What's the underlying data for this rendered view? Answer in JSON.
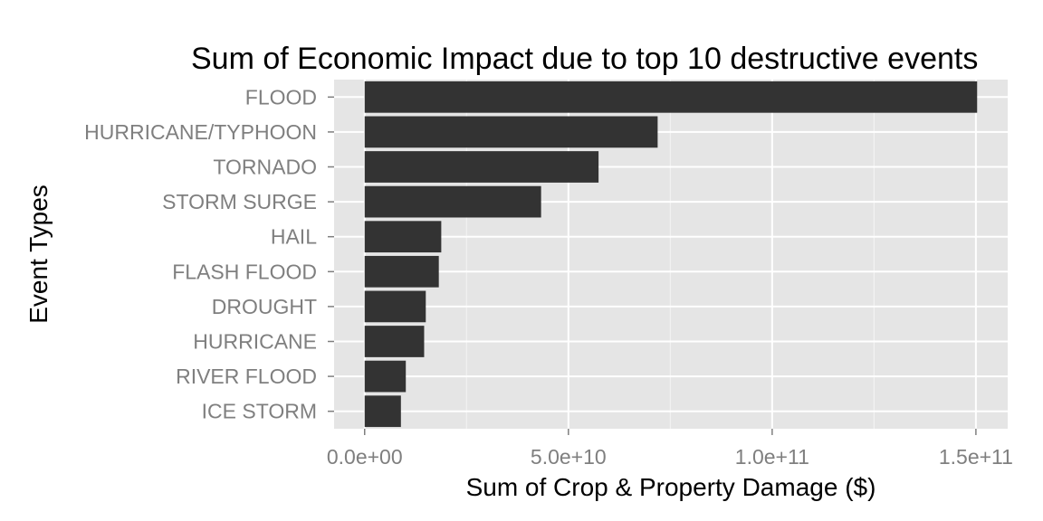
{
  "chart_data": {
    "type": "bar",
    "orientation": "horizontal",
    "title": "Sum of Economic Impact due to top 10 destructive events",
    "xlabel": "Sum of Crop & Property Damage ($)",
    "ylabel": "Event Types",
    "categories": [
      "FLOOD",
      "HURRICANE/TYPHOON",
      "TORNADO",
      "STORM SURGE",
      "HAIL",
      "FLASH FLOOD",
      "DROUGHT",
      "HURRICANE",
      "RIVER FLOOD",
      "ICE STORM"
    ],
    "values": [
      150300000000,
      71900000000,
      57400000000,
      43300000000,
      18800000000,
      18200000000,
      15000000000,
      14600000000,
      10100000000,
      8900000000
    ],
    "xlim": [
      -7500000000,
      157800000000
    ],
    "xticks": [
      0,
      50000000000,
      100000000000,
      150000000000
    ],
    "xtick_labels": [
      "0.0e+00",
      "5.0e+10",
      "1.0e+11",
      "1.5e+11"
    ],
    "grid": true,
    "colors": {
      "bar": "#333333",
      "panel": "#e5e5e5",
      "grid": "#ffffff",
      "tick_text": "#7f7f7f"
    }
  }
}
